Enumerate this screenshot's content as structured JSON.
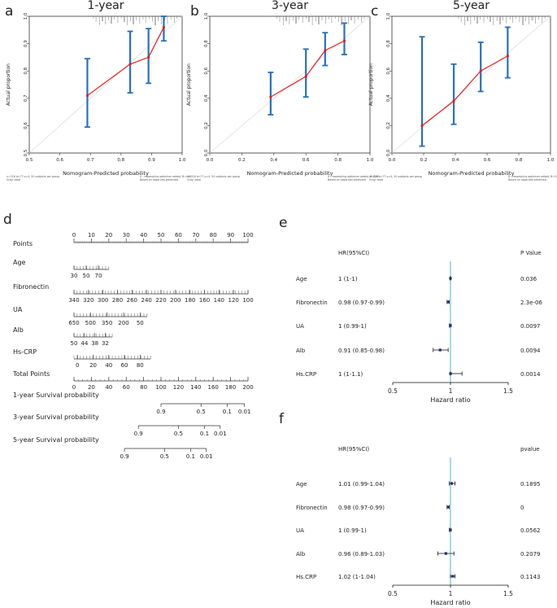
{
  "panel_labels": {
    "a": "a",
    "b": "b",
    "c": "c",
    "d": "d",
    "e": "e",
    "f": "f"
  },
  "colors": {
    "ci": "#2a6fb8",
    "line": "#e02020",
    "ref": "#dddddd",
    "forest_ref": "#4fb6d6",
    "forest_bar": "#1f2d70"
  },
  "chart_data": [
    {
      "panel": "a",
      "type": "line",
      "title": "1-year",
      "xlabel": "Nomogram-Predicted probability",
      "ylabel": "Actual proportion",
      "xlim": [
        0.5,
        1.0
      ],
      "ylim": [
        0.5,
        1.0
      ],
      "xticks": [
        "0.5",
        "0.6",
        "0.7",
        "0.8",
        "0.9",
        "1.0"
      ],
      "yticks": [
        "0.5",
        "0.6",
        "0.7",
        "0.8",
        "0.9",
        "1.0"
      ],
      "points": [
        {
          "x": 0.69,
          "y": 0.71,
          "lo": 0.595,
          "hi": 0.845
        },
        {
          "x": 0.83,
          "y": 0.825,
          "lo": 0.72,
          "hi": 0.945
        },
        {
          "x": 0.89,
          "y": 0.85,
          "lo": 0.755,
          "hi": 0.955
        },
        {
          "x": 0.94,
          "y": 0.96,
          "lo": 0.91,
          "hi": 1.0
        }
      ],
      "footnote_left": [
        "n=216 d=77 p=4, 50 subjects per group",
        "Gray: ideal"
      ],
      "footnote_right": [
        "X - resampling optimism added, B=100",
        "Based on observed-predicted"
      ]
    },
    {
      "panel": "b",
      "type": "line",
      "title": "3-year",
      "xlabel": "Nomogram-Predicted probability",
      "ylabel": "Actual proportion",
      "xlim": [
        0.0,
        1.0
      ],
      "ylim": [
        0.0,
        1.0
      ],
      "xticks": [
        "0.0",
        "0.2",
        "0.4",
        "0.6",
        "0.8",
        "1.0"
      ],
      "yticks": [
        "0.0",
        "0.2",
        "0.4",
        "0.6",
        "0.8",
        "1.0"
      ],
      "points": [
        {
          "x": 0.38,
          "y": 0.41,
          "lo": 0.28,
          "hi": 0.59
        },
        {
          "x": 0.6,
          "y": 0.56,
          "lo": 0.41,
          "hi": 0.76
        },
        {
          "x": 0.72,
          "y": 0.75,
          "lo": 0.64,
          "hi": 0.88
        },
        {
          "x": 0.84,
          "y": 0.82,
          "lo": 0.72,
          "hi": 0.95
        }
      ],
      "footnote_left": [
        "n=216 d=77 p=4, 50 subjects per group",
        "Gray: ideal"
      ],
      "footnote_right": [
        "X - resampling optimism added, B=100",
        "Based on observed-predicted"
      ]
    },
    {
      "panel": "c",
      "type": "line",
      "title": "5-year",
      "xlabel": "Nomogram-Predicted probability",
      "ylabel": "Actual proportion",
      "xlim": [
        0.0,
        1.0
      ],
      "ylim": [
        0.0,
        1.0
      ],
      "xticks": [
        "0.0",
        "0.2",
        "0.4",
        "0.6",
        "0.8",
        "1.0"
      ],
      "yticks": [
        "0.0",
        "0.2",
        "0.4",
        "0.6",
        "0.8",
        "1.0"
      ],
      "points": [
        {
          "x": 0.19,
          "y": 0.2,
          "lo": 0.05,
          "hi": 0.85
        },
        {
          "x": 0.39,
          "y": 0.38,
          "lo": 0.21,
          "hi": 0.65
        },
        {
          "x": 0.56,
          "y": 0.6,
          "lo": 0.45,
          "hi": 0.81
        },
        {
          "x": 0.73,
          "y": 0.71,
          "lo": 0.55,
          "hi": 0.92
        }
      ],
      "footnote_left": [
        "n=216 d=77 p=4, 50 subjects per group",
        "Gray: ideal"
      ],
      "footnote_right": [
        "X - resampling optimism added, B=100",
        "Based on observed-predicted"
      ]
    },
    {
      "panel": "d",
      "type": "nomogram",
      "rows": [
        {
          "label": "Points",
          "ticks": [
            {
              "v": 0,
              "t": "0"
            },
            {
              "v": 10,
              "t": "10"
            },
            {
              "v": 20,
              "t": "20"
            },
            {
              "v": 30,
              "t": "30"
            },
            {
              "v": 40,
              "t": "40"
            },
            {
              "v": 50,
              "t": "50"
            },
            {
              "v": 60,
              "t": "60"
            },
            {
              "v": 70,
              "t": "70"
            },
            {
              "v": 80,
              "t": "80"
            },
            {
              "v": 90,
              "t": "90"
            },
            {
              "v": 100,
              "t": "100"
            }
          ],
          "range": [
            0,
            100
          ],
          "labels_above": true
        },
        {
          "label": "Age",
          "ticks": [
            {
              "v": 0,
              "t": "30"
            },
            {
              "v": 7,
              "t": "50"
            },
            {
              "v": 14,
              "t": "70"
            }
          ],
          "range": [
            0,
            20
          ]
        },
        {
          "label": "Fibronectin",
          "ticks": [
            {
              "v": 0,
              "t": "340"
            },
            {
              "v": 8.33,
              "t": "320"
            },
            {
              "v": 16.67,
              "t": "300"
            },
            {
              "v": 25,
              "t": "280"
            },
            {
              "v": 33.33,
              "t": "260"
            },
            {
              "v": 41.67,
              "t": "240"
            },
            {
              "v": 50,
              "t": "220"
            },
            {
              "v": 58.33,
              "t": "200"
            },
            {
              "v": 66.67,
              "t": "180"
            },
            {
              "v": 75,
              "t": "160"
            },
            {
              "v": 83.33,
              "t": "140"
            },
            {
              "v": 91.67,
              "t": "120"
            },
            {
              "v": 100,
              "t": "100"
            }
          ],
          "range": [
            0,
            100
          ]
        },
        {
          "label": "UA",
          "ticks": [
            {
              "v": 0,
              "t": "650"
            },
            {
              "v": 9.5,
              "t": "500"
            },
            {
              "v": 19,
              "t": "350"
            },
            {
              "v": 28.5,
              "t": "200"
            },
            {
              "v": 38,
              "t": "50"
            }
          ],
          "range": [
            0,
            42
          ]
        },
        {
          "label": "Alb",
          "ticks": [
            {
              "v": 0,
              "t": "50"
            },
            {
              "v": 6,
              "t": "44"
            },
            {
              "v": 12,
              "t": "38"
            },
            {
              "v": 18,
              "t": "32"
            }
          ],
          "range": [
            0,
            22
          ]
        },
        {
          "label": "Hs-CRP",
          "ticks": [
            {
              "v": 2,
              "t": "0"
            },
            {
              "v": 11,
              "t": "20"
            },
            {
              "v": 20,
              "t": "40"
            },
            {
              "v": 29,
              "t": "60"
            },
            {
              "v": 38,
              "t": "80"
            }
          ],
          "range": [
            0,
            44
          ]
        },
        {
          "label": "Total Points",
          "ticks": [
            {
              "v": 0,
              "t": "0"
            },
            {
              "v": 10,
              "t": "20"
            },
            {
              "v": 20,
              "t": "40"
            },
            {
              "v": 30,
              "t": "60"
            },
            {
              "v": 40,
              "t": "80"
            },
            {
              "v": 50,
              "t": "100"
            },
            {
              "v": 60,
              "t": "120"
            },
            {
              "v": 70,
              "t": "140"
            },
            {
              "v": 80,
              "t": "160"
            },
            {
              "v": 90,
              "t": "180"
            },
            {
              "v": 100,
              "t": "200"
            }
          ],
          "range": [
            0,
            100
          ]
        },
        {
          "label": "1-year Survival probability",
          "ticks": [
            {
              "v": 50,
              "t": "0.9"
            },
            {
              "v": 73,
              "t": "0.5"
            },
            {
              "v": 88,
              "t": "0.1"
            },
            {
              "v": 98,
              "t": "0.01"
            }
          ],
          "range": [
            50,
            98
          ]
        },
        {
          "label": "3-year Survival probability",
          "ticks": [
            {
              "v": 37,
              "t": "0.9"
            },
            {
              "v": 60,
              "t": "0.5"
            },
            {
              "v": 75,
              "t": "0.1"
            },
            {
              "v": 84,
              "t": "0.01"
            }
          ],
          "range": [
            37,
            84
          ]
        },
        {
          "label": "5-year Survival probability",
          "ticks": [
            {
              "v": 29,
              "t": "0.9"
            },
            {
              "v": 52,
              "t": "0.5"
            },
            {
              "v": 67,
              "t": "0.1"
            },
            {
              "v": 76,
              "t": "0.01"
            }
          ],
          "range": [
            29,
            76
          ]
        }
      ]
    },
    {
      "panel": "e",
      "type": "forest",
      "header_left": "HR(95%CI)",
      "header_right": "P Value",
      "xlabel": "Hazard ratio",
      "xlim": [
        0.5,
        1.5
      ],
      "xticks": [
        "0.5",
        "1",
        "1.5"
      ],
      "rows": [
        {
          "name": "Age",
          "hr_text": "1 (1-1)",
          "p": "0.036",
          "hr": 1.0,
          "lo": 0.998,
          "hi": 1.002
        },
        {
          "name": "Fibronectin",
          "hr_text": "0.98 (0.97-0.99)",
          "p": "2.3e-06",
          "hr": 0.98,
          "lo": 0.97,
          "hi": 0.99
        },
        {
          "name": "UA",
          "hr_text": "1 (0.99-1)",
          "p": "0.0097",
          "hr": 1.0,
          "lo": 0.99,
          "hi": 1.0
        },
        {
          "name": "Alb",
          "hr_text": "0.91 (0.85-0.98)",
          "p": "0.0094",
          "hr": 0.91,
          "lo": 0.85,
          "hi": 0.98
        },
        {
          "name": "Hs.CRP",
          "hr_text": "1 (1-1.1)",
          "p": "0.0014",
          "hr": 1.0,
          "lo": 1.0,
          "hi": 1.1
        }
      ]
    },
    {
      "panel": "f",
      "type": "forest",
      "header_left": "HR(95%CI)",
      "header_right": "pvalue",
      "xlabel": "Hazard ratio",
      "xlim": [
        0.5,
        1.5
      ],
      "xticks": [
        "0.5",
        "1",
        "1.5"
      ],
      "rows": [
        {
          "name": "Age",
          "hr_text": "1.01 (0.99-1.04)",
          "p": "0.1895",
          "hr": 1.01,
          "lo": 0.99,
          "hi": 1.04
        },
        {
          "name": "Fibronectin",
          "hr_text": "0.98 (0.97-0.99)",
          "p": "0",
          "hr": 0.98,
          "lo": 0.97,
          "hi": 0.99
        },
        {
          "name": "UA",
          "hr_text": "1 (0.99-1)",
          "p": "0.0562",
          "hr": 1.0,
          "lo": 0.99,
          "hi": 1.0
        },
        {
          "name": "Alb",
          "hr_text": "0.96 (0.89-1.03)",
          "p": "0.2079",
          "hr": 0.96,
          "lo": 0.89,
          "hi": 1.03
        },
        {
          "name": "Hs.CRP",
          "hr_text": "1.02 (1-1.04)",
          "p": "0.1143",
          "hr": 1.02,
          "lo": 1.0,
          "hi": 1.04
        }
      ]
    }
  ]
}
